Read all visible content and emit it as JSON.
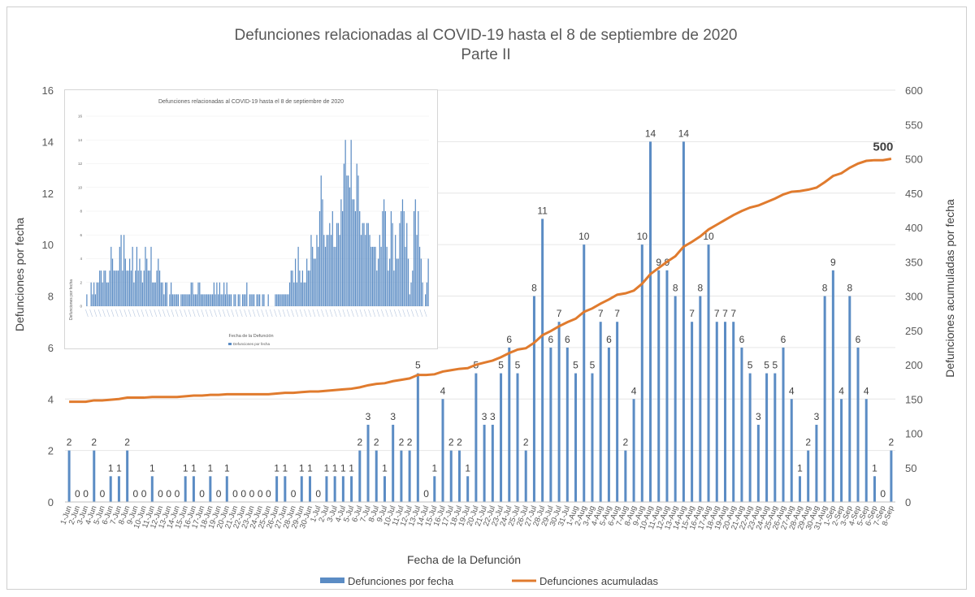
{
  "chart_data": {
    "type": "bar",
    "title": "Defunciones relacionadas al COVID-19 hasta el 8 de septiembre de 2020",
    "subtitle": "Parte II",
    "xlabel": "Fecha de la Defunción",
    "ylabel": "Defunciones por fecha",
    "y2label": "Defunciones acumuladas por fecha",
    "ylim": [
      0,
      16
    ],
    "y2lim": [
      0,
      600
    ],
    "yticks": [
      0,
      2,
      4,
      6,
      8,
      10,
      12,
      14,
      16
    ],
    "y2ticks": [
      0,
      50,
      100,
      150,
      200,
      250,
      300,
      350,
      400,
      450,
      500,
      550,
      600
    ],
    "bar_color": "#5B8CC4",
    "line_color": "#E07B2E",
    "final_label": "500",
    "legend": [
      "Defunciones por fecha",
      "Defunciones acumuladas"
    ],
    "categories": [
      "1-Jun",
      "2-Jun",
      "3-Jun",
      "4-Jun",
      "5-Jun",
      "6-Jun",
      "7-Jun",
      "8-Jun",
      "9-Jun",
      "10-Jun",
      "11-Jun",
      "12-Jun",
      "13-Jun",
      "14-Jun",
      "15-Jun",
      "16-Jun",
      "17-Jun",
      "18-Jun",
      "19-Jun",
      "20-Jun",
      "21-Jun",
      "22-Jun",
      "23-Jun",
      "24-Jun",
      "25-Jun",
      "26-Jun",
      "27-Jun",
      "28-Jun",
      "29-Jun",
      "30-Jun",
      "1-Jul",
      "2-Jul",
      "3-Jul",
      "4-Jul",
      "5-Jul",
      "6-Jul",
      "7-Jul",
      "8-Jul",
      "9-Jul",
      "10-Jul",
      "11-Jul",
      "12-Jul",
      "13-Jul",
      "14-Jul",
      "15-Jul",
      "16-Jul",
      "17-Jul",
      "18-Jul",
      "19-Jul",
      "20-Jul",
      "21-Jul",
      "22-Jul",
      "23-Jul",
      "24-Jul",
      "25-Jul",
      "26-Jul",
      "27-Jul",
      "28-Jul",
      "29-Jul",
      "30-Jul",
      "31-Jul",
      "1-Aug",
      "2-Aug",
      "3-Aug",
      "4-Aug",
      "5-Aug",
      "6-Aug",
      "7-Aug",
      "8-Aug",
      "9-Aug",
      "10-Aug",
      "11-Aug",
      "12-Aug",
      "13-Aug",
      "14-Aug",
      "15-Aug",
      "16-Aug",
      "17-Aug",
      "18-Aug",
      "19-Aug",
      "20-Aug",
      "21-Aug",
      "22-Aug",
      "23-Aug",
      "24-Aug",
      "25-Aug",
      "26-Aug",
      "27-Aug",
      "28-Aug",
      "29-Aug",
      "30-Aug",
      "31-Aug",
      "1-Sep",
      "2-Sep",
      "3-Sep",
      "4-Sep",
      "5-Sep",
      "6-Sep",
      "7-Sep",
      "8-Sep"
    ],
    "series": [
      {
        "name": "Defunciones por fecha",
        "type": "bar",
        "axis": "left",
        "values": [
          2,
          0,
          0,
          2,
          0,
          1,
          1,
          2,
          0,
          0,
          1,
          0,
          0,
          0,
          1,
          1,
          0,
          1,
          0,
          1,
          0,
          0,
          0,
          0,
          0,
          1,
          1,
          0,
          1,
          1,
          0,
          1,
          1,
          1,
          1,
          2,
          3,
          2,
          1,
          3,
          2,
          2,
          5,
          0,
          1,
          4,
          2,
          2,
          1,
          5,
          3,
          3,
          5,
          6,
          5,
          2,
          8,
          11,
          6,
          7,
          6,
          5,
          10,
          5,
          7,
          6,
          7,
          2,
          4,
          10,
          14,
          9,
          9,
          8,
          14,
          7,
          8,
          10,
          7,
          7,
          7,
          6,
          5,
          3,
          5,
          5,
          6,
          4,
          1,
          2,
          3,
          8,
          9,
          4,
          8,
          6,
          4,
          1,
          0,
          2
        ]
      },
      {
        "name": "Defunciones acumuladas",
        "type": "line",
        "axis": "right",
        "values": [
          146,
          146,
          146,
          148,
          148,
          149,
          150,
          152,
          152,
          152,
          153,
          153,
          153,
          153,
          154,
          155,
          155,
          156,
          156,
          157,
          157,
          157,
          157,
          157,
          157,
          158,
          159,
          159,
          160,
          161,
          161,
          162,
          163,
          164,
          165,
          167,
          170,
          172,
          173,
          176,
          178,
          180,
          185,
          185,
          186,
          190,
          192,
          194,
          195,
          200,
          203,
          206,
          211,
          217,
          222,
          224,
          232,
          243,
          249,
          256,
          262,
          267,
          277,
          282,
          289,
          295,
          302,
          304,
          308,
          318,
          332,
          341,
          350,
          358,
          372,
          379,
          387,
          397,
          404,
          411,
          418,
          424,
          429,
          432,
          437,
          442,
          448,
          452,
          453,
          455,
          458,
          466,
          475,
          479,
          487,
          493,
          497,
          498,
          498,
          500
        ]
      }
    ],
    "inset": {
      "title": "Defunciones relacionadas al COVID-19 hasta el 8 de septiembre de 2020",
      "xlabel": "Fecha de la Defunción",
      "ylabel": "Defunciones por fecha",
      "legend": "Defunciones por fecha",
      "ylim": [
        0,
        16
      ],
      "yticks": [
        0,
        2,
        4,
        6,
        8,
        10,
        12,
        14,
        16
      ],
      "values": [
        1,
        0,
        0,
        2,
        1,
        2,
        1,
        2,
        2,
        3,
        3,
        2,
        3,
        3,
        2,
        2,
        3,
        5,
        4,
        3,
        3,
        3,
        3,
        5,
        6,
        3,
        6,
        4,
        3,
        3,
        4,
        3,
        5,
        2,
        3,
        5,
        3,
        4,
        3,
        2,
        3,
        5,
        4,
        3,
        3,
        5,
        2,
        2,
        2,
        3,
        4,
        3,
        2,
        2,
        1,
        2,
        2,
        0,
        1,
        2,
        1,
        1,
        1,
        1,
        1,
        0,
        1,
        1,
        1,
        1,
        1,
        1,
        1,
        2,
        2,
        1,
        1,
        1,
        2,
        2,
        1,
        1,
        1,
        1,
        1,
        1,
        1,
        1,
        1,
        2,
        1,
        2,
        1,
        2,
        1,
        1,
        2,
        1,
        2,
        1,
        1,
        1,
        0,
        1,
        1,
        0,
        1,
        1,
        0,
        1,
        1,
        1,
        2,
        0,
        1,
        1,
        1,
        1,
        0,
        1,
        1,
        1,
        0,
        1,
        1,
        0,
        0,
        1,
        0,
        0,
        0,
        0,
        1,
        1,
        1,
        1,
        1,
        1,
        1,
        1,
        1,
        1,
        2,
        3,
        3,
        2,
        4,
        2,
        5,
        3,
        2,
        3,
        2,
        2,
        4,
        3,
        3,
        6,
        5,
        4,
        4,
        6,
        5,
        8,
        11,
        9,
        6,
        5,
        6,
        6,
        7,
        6,
        8,
        5,
        5,
        7,
        7,
        6,
        9,
        8,
        12,
        14,
        11,
        11,
        10,
        14,
        9,
        9,
        8,
        12,
        11,
        8,
        6,
        7,
        7,
        6,
        7,
        7,
        6,
        5,
        5,
        5,
        5,
        3,
        4,
        6,
        5,
        8,
        9,
        8,
        5,
        3,
        4,
        8,
        7,
        3,
        6,
        4,
        4,
        7,
        8,
        9,
        8,
        5,
        7,
        4,
        1,
        2,
        3,
        8,
        9,
        6,
        8,
        5,
        4,
        2,
        0,
        1,
        2,
        4
      ]
    }
  }
}
